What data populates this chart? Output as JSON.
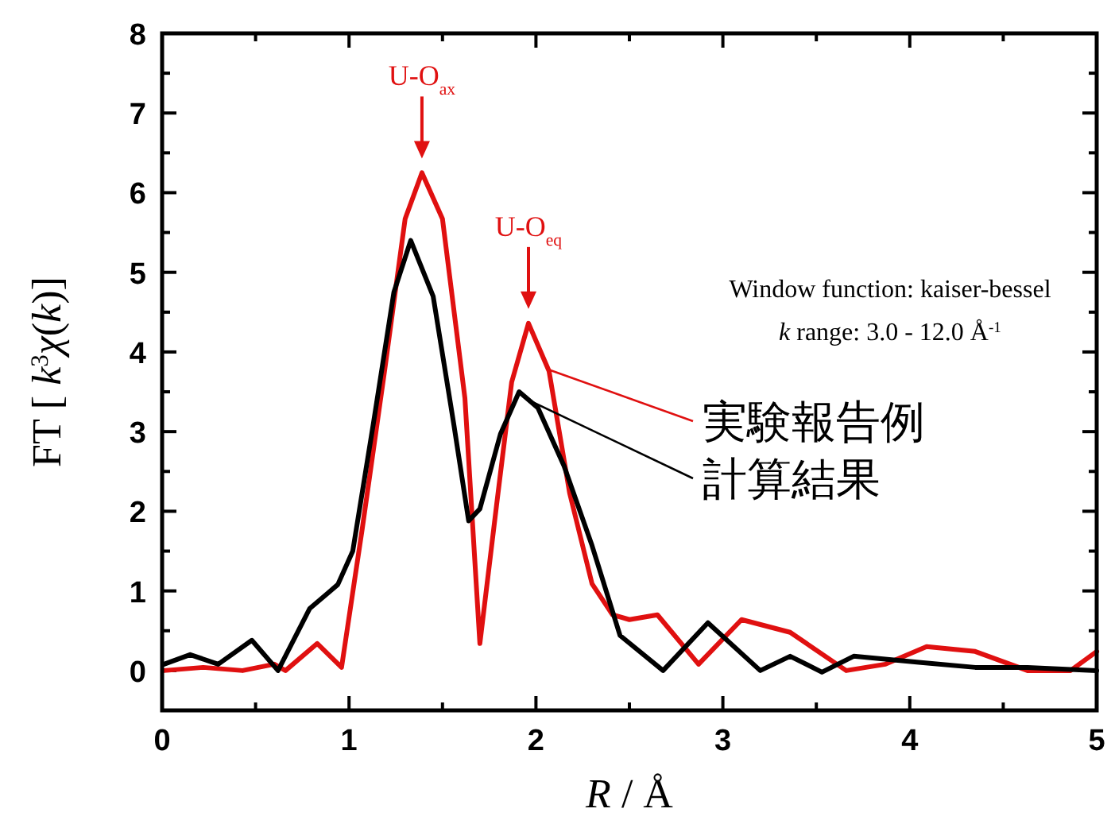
{
  "chart_data": {
    "type": "line",
    "xlabel": "*R*  /  Å",
    "ylabel": "FT [ *k*$^{3}$*χ*(*k*)]",
    "xlim": [
      0,
      5
    ],
    "xticks": [
      0,
      1,
      2,
      3,
      4,
      5
    ],
    "ylim": [
      -0.5,
      8
    ],
    "yticks": [
      0,
      1,
      2,
      3,
      4,
      5,
      6,
      7,
      8
    ],
    "legend": "right",
    "series": [
      {
        "name": "実験報告例",
        "color": "#e01010",
        "x": [
          0.01,
          0.22,
          0.43,
          0.6,
          0.66,
          0.83,
          0.96,
          1.07,
          1.19,
          1.3,
          1.39,
          1.5,
          1.62,
          1.7,
          1.79,
          1.87,
          1.96,
          2.07,
          2.18,
          2.3,
          2.41,
          2.5,
          2.65,
          2.87,
          3.1,
          3.36,
          3.66,
          3.87,
          4.09,
          4.35,
          4.63,
          4.86,
          5.0
        ],
        "values": [
          0.0,
          0.04,
          0.0,
          0.08,
          0.0,
          0.34,
          0.04,
          1.77,
          3.76,
          5.67,
          6.25,
          5.67,
          3.42,
          0.34,
          2.09,
          3.62,
          4.36,
          3.76,
          2.23,
          1.09,
          0.7,
          0.64,
          0.7,
          0.08,
          0.64,
          0.48,
          0.0,
          0.08,
          0.3,
          0.24,
          0.0,
          0.0,
          0.24
        ]
      },
      {
        "name": "計算結果",
        "color": "#000000",
        "x": [
          0.01,
          0.15,
          0.3,
          0.48,
          0.62,
          0.79,
          0.89,
          0.94,
          1.02,
          1.13,
          1.24,
          1.33,
          1.45,
          1.56,
          1.64,
          1.7,
          1.81,
          1.91,
          2.01,
          2.15,
          2.3,
          2.45,
          2.68,
          2.92,
          3.2,
          3.36,
          3.53,
          3.7,
          4.06,
          4.35,
          4.63,
          5.0
        ],
        "values": [
          0.08,
          0.2,
          0.08,
          0.38,
          0.0,
          0.78,
          0.98,
          1.08,
          1.5,
          3.1,
          4.75,
          5.4,
          4.7,
          3.1,
          1.88,
          2.03,
          2.97,
          3.5,
          3.3,
          2.57,
          1.57,
          0.44,
          0.0,
          0.6,
          0.0,
          0.18,
          -0.02,
          0.18,
          0.1,
          0.04,
          0.04,
          0.0
        ]
      }
    ],
    "annotations": [
      {
        "text": "U-O$_{ax}$",
        "x": 1.39,
        "y": 6.25
      },
      {
        "text": "U-O$_{eq}$",
        "x": 1.96,
        "y": 4.36
      },
      "Window function: kaiser-bessel",
      "*k* range: 3.0 - 12.0 Å$^{-1}$"
    ]
  }
}
